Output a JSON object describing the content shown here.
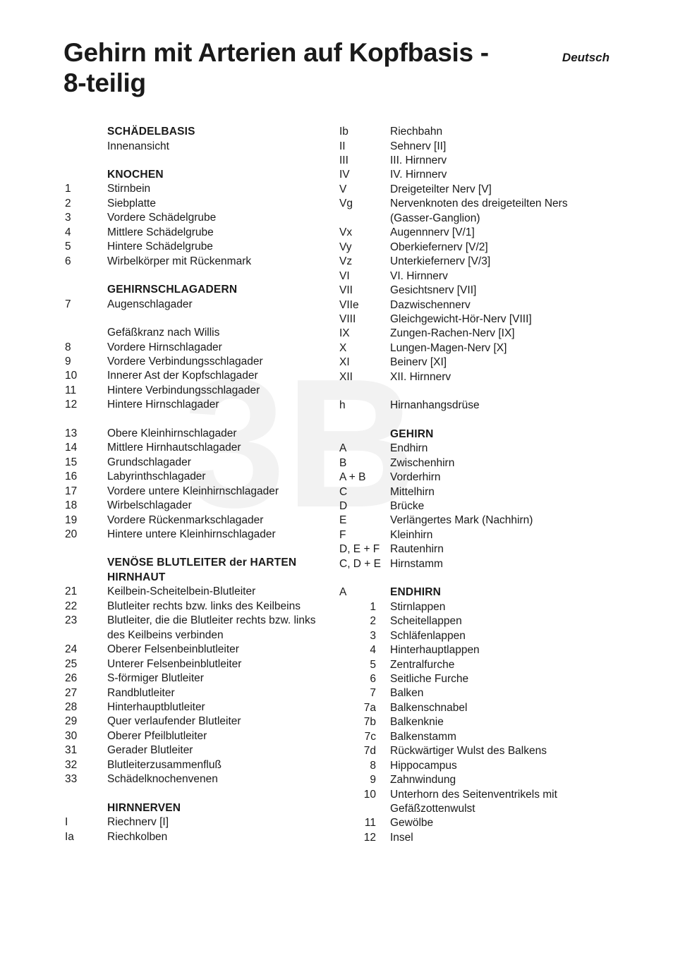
{
  "title_line1": "Gehirn mit Arterien auf Kopfbasis -",
  "title_line2": "8-teilig",
  "language_label": "Deutsch",
  "watermark_text": "3B",
  "left": [
    {
      "k": "",
      "v": "SCHÄDELBASIS",
      "h": true
    },
    {
      "k": "",
      "v": "Innenansicht"
    },
    {
      "spacer": true
    },
    {
      "k": "",
      "v": "KNOCHEN",
      "h": true
    },
    {
      "k": "1",
      "v": "Stirnbein"
    },
    {
      "k": "2",
      "v": "Siebplatte"
    },
    {
      "k": "3",
      "v": "Vordere Schädelgrube"
    },
    {
      "k": "4",
      "v": "Mittlere Schädelgrube"
    },
    {
      "k": "5",
      "v": "Hintere Schädelgrube"
    },
    {
      "k": "6",
      "v": "Wirbelkörper mit Rückenmark"
    },
    {
      "spacer": true
    },
    {
      "k": "",
      "v": "GEHIRNSCHLAGADERN",
      "h": true
    },
    {
      "k": "7",
      "v": "Augenschlagader"
    },
    {
      "spacer": true
    },
    {
      "k": "",
      "v": "Gefäßkranz nach Willis"
    },
    {
      "k": "8",
      "v": "Vordere Hirnschlagader"
    },
    {
      "k": "9",
      "v": "Vordere Verbindungsschlagader"
    },
    {
      "k": "10",
      "v": "Innerer Ast der Kopfschlagader"
    },
    {
      "k": "11",
      "v": "Hintere Verbindungsschlagader"
    },
    {
      "k": "12",
      "v": "Hintere Hirnschlagader"
    },
    {
      "spacer": true
    },
    {
      "k": "13",
      "v": "Obere Kleinhirnschlagader"
    },
    {
      "k": "14",
      "v": "Mittlere Hirnhautschlagader"
    },
    {
      "k": "15",
      "v": "Grundschlagader"
    },
    {
      "k": "16",
      "v": "Labyrinthschlagader"
    },
    {
      "k": "17",
      "v": "Vordere untere Kleinhirnschlagader"
    },
    {
      "k": "18",
      "v": "Wirbelschlagader"
    },
    {
      "k": "19",
      "v": "Vordere Rückenmarkschlagader"
    },
    {
      "k": "20",
      "v": "Hintere untere Kleinhirnschlagader"
    },
    {
      "spacer": true
    },
    {
      "k": "",
      "v": "VENÖSE BLUTLEITER der HARTEN HIRNHAUT",
      "h": true
    },
    {
      "k": "21",
      "v": "Keilbein-Scheitelbein-Blutleiter"
    },
    {
      "k": "22",
      "v": "Blutleiter rechts bzw. links des Keilbeins"
    },
    {
      "k": "23",
      "v": "Blutleiter, die die Blutleiter rechts bzw. links des Keilbeins verbinden"
    },
    {
      "k": "24",
      "v": "Oberer Felsenbeinblutleiter"
    },
    {
      "k": "25",
      "v": "Unterer Felsenbeinblutleiter"
    },
    {
      "k": "26",
      "v": "S-förmiger Blutleiter"
    },
    {
      "k": "27",
      "v": "Randblutleiter"
    },
    {
      "k": "28",
      "v": "Hinterhauptblutleiter"
    },
    {
      "k": "29",
      "v": "Quer verlaufender Blutleiter"
    },
    {
      "k": "30",
      "v": "Oberer Pfeilblutleiter"
    },
    {
      "k": "31",
      "v": "Gerader Blutleiter"
    },
    {
      "k": "32",
      "v": "Blutleiterzusammenfluß"
    },
    {
      "k": "33",
      "v": "Schädelknochenvenen"
    },
    {
      "spacer": true
    },
    {
      "k": "",
      "v": "HIRNNERVEN",
      "h": true
    },
    {
      "k": "I",
      "v": "Riechnerv [I]"
    },
    {
      "k": "Ia",
      "v": "Riechkolben"
    }
  ],
  "right": [
    {
      "k": "Ib",
      "v": "Riechbahn"
    },
    {
      "k": "II",
      "v": "Sehnerv [II]"
    },
    {
      "k": "III",
      "v": "III. Hirnnerv"
    },
    {
      "k": "IV",
      "v": "IV. Hirnnerv"
    },
    {
      "k": "V",
      "v": "Dreigeteilter Nerv [V]"
    },
    {
      "k": "Vg",
      "v": "Nervenknoten des dreigeteilten Ners (Gasser-Ganglion)"
    },
    {
      "k": "Vx",
      "v": "Augennnerv [V/1]"
    },
    {
      "k": "Vy",
      "v": "Oberkiefernerv [V/2]"
    },
    {
      "k": "Vz",
      "v": "Unterkiefernerv  [V/3]"
    },
    {
      "k": "VI",
      "v": "VI. Hirnnerv"
    },
    {
      "k": "VII",
      "v": "Gesichtsnerv [VII]"
    },
    {
      "k": "VIIe",
      "v": "Dazwischennerv"
    },
    {
      "k": "VIII",
      "v": "Gleichgewicht-Hör-Nerv [VIII]"
    },
    {
      "k": "IX",
      "v": "Zungen-Rachen-Nerv [IX]"
    },
    {
      "k": "X",
      "v": "Lungen-Magen-Nerv [X]"
    },
    {
      "k": "XI",
      "v": "Beinerv [XI]"
    },
    {
      "k": "XII",
      "v": "XII. Hirnnerv"
    },
    {
      "spacer": true
    },
    {
      "k": "h",
      "v": "Hirnanhangsdrüse"
    },
    {
      "spacer": true
    },
    {
      "k": "",
      "v": "GEHIRN",
      "h": true
    },
    {
      "k": "A",
      "v": "Endhirn"
    },
    {
      "k": "B",
      "v": "Zwischenhirn"
    },
    {
      "k": "A + B",
      "v": "Vorderhirn"
    },
    {
      "k": "C",
      "v": "Mittelhirn"
    },
    {
      "k": "D",
      "v": "Brücke"
    },
    {
      "k": "E",
      "v": "Verlängertes Mark (Nachhirn)"
    },
    {
      "k": "F",
      "v": "Kleinhirn"
    },
    {
      "k": "D, E + F",
      "v": "Rautenhirn",
      "wide": true
    },
    {
      "k": "C, D + E",
      "v": "Hirnstamm",
      "wide": true
    },
    {
      "spacer": true
    },
    {
      "k": "A",
      "v": "ENDHIRN",
      "h": true
    },
    {
      "k": "1",
      "v": "Stirnlappen",
      "r": true
    },
    {
      "k": "2",
      "v": "Scheitellappen",
      "r": true
    },
    {
      "k": "3",
      "v": "Schläfenlappen",
      "r": true
    },
    {
      "k": "4",
      "v": "Hinterhauptlappen",
      "r": true
    },
    {
      "k": "5",
      "v": "Zentralfurche",
      "r": true
    },
    {
      "k": "6",
      "v": "Seitliche Furche",
      "r": true
    },
    {
      "k": "7",
      "v": "Balken",
      "r": true
    },
    {
      "k": "7a",
      "v": "Balkenschnabel",
      "r": true
    },
    {
      "k": "7b",
      "v": "Balkenknie",
      "r": true
    },
    {
      "k": "7c",
      "v": "Balkenstamm",
      "r": true
    },
    {
      "k": "7d",
      "v": "Rückwärtiger Wulst des Balkens",
      "r": true
    },
    {
      "k": "8",
      "v": "Hippocampus",
      "r": true
    },
    {
      "k": "9",
      "v": "Zahnwindung",
      "r": true
    },
    {
      "k": "10",
      "v": "Unterhorn des Seitenventrikels mit Gefäßzottenwulst",
      "r": true
    },
    {
      "k": "11",
      "v": "Gewölbe",
      "r": true
    },
    {
      "k": "12",
      "v": "Insel",
      "r": true
    }
  ]
}
